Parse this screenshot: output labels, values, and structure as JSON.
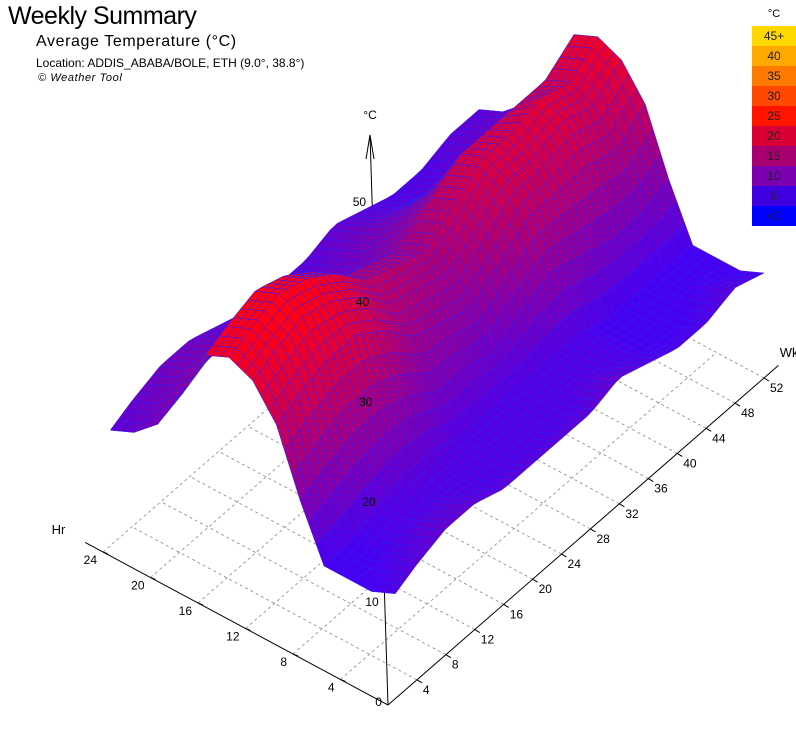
{
  "title": "Weekly Summary",
  "subtitle": "Average Temperature (°C)",
  "location": "Location: ADDIS_ABABA/BOLE, ETH (9.0°, 38.8°)",
  "copyright": "© Weather Tool",
  "legend": {
    "unit": "°C",
    "items": [
      {
        "label": "45+",
        "color": "#ffd800"
      },
      {
        "label": "40",
        "color": "#ffa800"
      },
      {
        "label": "35",
        "color": "#ff7a00"
      },
      {
        "label": "30",
        "color": "#ff4800"
      },
      {
        "label": "25",
        "color": "#ff1400"
      },
      {
        "label": "20",
        "color": "#d80034"
      },
      {
        "label": "15",
        "color": "#a80070"
      },
      {
        "label": "10",
        "color": "#7a00b0"
      },
      {
        "label": "5",
        "color": "#4000e0"
      },
      {
        "label": "<0",
        "color": "#0000ff"
      }
    ]
  },
  "chart_data": {
    "type": "surface",
    "x_axis": {
      "label": "Hr",
      "ticks": [
        "4",
        "8",
        "12",
        "16",
        "20",
        "24"
      ],
      "range": [
        0,
        24
      ]
    },
    "y_axis": {
      "label": "Wk",
      "ticks": [
        "4",
        "8",
        "12",
        "16",
        "20",
        "24",
        "28",
        "32",
        "36",
        "40",
        "44",
        "48",
        "52"
      ],
      "range": [
        0,
        52
      ]
    },
    "z_axis": {
      "label": "°C",
      "ticks": [
        "0",
        "10",
        "20",
        "30",
        "40",
        "50"
      ],
      "range": [
        0,
        50
      ]
    },
    "grid": true,
    "hours": [
      0,
      2,
      4,
      6,
      8,
      10,
      12,
      14,
      16,
      18,
      20,
      22,
      24
    ],
    "weeks": [
      1,
      4,
      8,
      12,
      16,
      20,
      24,
      28,
      32,
      36,
      40,
      44,
      48,
      52
    ],
    "values": [
      [
        10,
        11,
        12,
        12,
        11,
        11,
        11,
        11,
        12,
        11,
        10,
        10,
        11,
        10
      ],
      [
        9,
        10,
        11,
        11,
        10,
        10,
        10,
        10,
        11,
        10,
        9,
        9,
        10,
        9
      ],
      [
        9,
        9,
        10,
        10,
        10,
        10,
        10,
        10,
        10,
        10,
        9,
        9,
        9,
        9
      ],
      [
        9,
        9,
        10,
        11,
        11,
        10,
        10,
        10,
        10,
        10,
        9,
        9,
        9,
        9
      ],
      [
        14,
        15,
        16,
        16,
        15,
        13,
        13,
        12,
        14,
        15,
        14,
        13,
        13,
        14
      ],
      [
        20,
        21,
        22,
        22,
        20,
        17,
        16,
        15,
        17,
        19,
        19,
        19,
        18,
        20
      ],
      [
        23,
        24,
        25,
        24,
        22,
        19,
        18,
        17,
        19,
        21,
        21,
        22,
        21,
        23
      ],
      [
        24,
        25,
        26,
        25,
        23,
        20,
        19,
        18,
        20,
        22,
        22,
        23,
        22,
        24
      ],
      [
        23,
        24,
        25,
        24,
        22,
        19,
        18,
        17,
        19,
        21,
        21,
        21,
        21,
        23
      ],
      [
        18,
        19,
        21,
        20,
        18,
        16,
        15,
        15,
        16,
        17,
        16,
        16,
        16,
        18
      ],
      [
        14,
        15,
        16,
        16,
        15,
        14,
        13,
        13,
        14,
        14,
        13,
        13,
        13,
        14
      ],
      [
        12,
        13,
        14,
        14,
        13,
        12,
        12,
        12,
        13,
        12,
        11,
        11,
        12,
        12
      ],
      [
        11,
        12,
        13,
        13,
        12,
        11,
        11,
        11,
        12,
        11,
        10,
        10,
        11,
        11
      ]
    ]
  }
}
